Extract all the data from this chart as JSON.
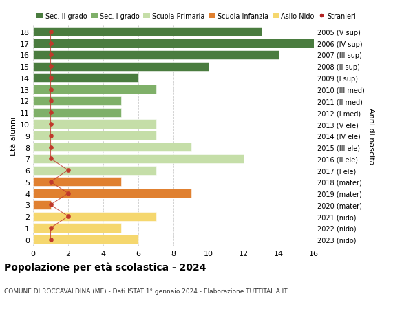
{
  "ages": [
    18,
    17,
    16,
    15,
    14,
    13,
    12,
    11,
    10,
    9,
    8,
    7,
    6,
    5,
    4,
    3,
    2,
    1,
    0
  ],
  "values": [
    13,
    16,
    14,
    10,
    6,
    7,
    5,
    5,
    7,
    7,
    9,
    12,
    7,
    5,
    9,
    1,
    7,
    5,
    6
  ],
  "colors": [
    "#4a7c3f",
    "#4a7c3f",
    "#4a7c3f",
    "#4a7c3f",
    "#4a7c3f",
    "#7fb069",
    "#7fb069",
    "#7fb069",
    "#c5dea8",
    "#c5dea8",
    "#c5dea8",
    "#c5dea8",
    "#c5dea8",
    "#e08030",
    "#e08030",
    "#e08030",
    "#f5d76e",
    "#f5d76e",
    "#f5d76e"
  ],
  "right_labels": [
    "2005 (V sup)",
    "2006 (IV sup)",
    "2007 (III sup)",
    "2008 (II sup)",
    "2009 (I sup)",
    "2010 (III med)",
    "2011 (II med)",
    "2012 (I med)",
    "2013 (V ele)",
    "2014 (IV ele)",
    "2015 (III ele)",
    "2016 (II ele)",
    "2017 (I ele)",
    "2018 (mater)",
    "2019 (mater)",
    "2020 (mater)",
    "2021 (nido)",
    "2022 (nido)",
    "2023 (nido)"
  ],
  "legend_labels": [
    "Sec. II grado",
    "Sec. I grado",
    "Scuola Primaria",
    "Scuola Infanzia",
    "Asilo Nido",
    "Stranieri"
  ],
  "legend_colors": [
    "#4a7c3f",
    "#7fb069",
    "#c5dea8",
    "#e08030",
    "#f5d76e",
    "#b22222"
  ],
  "ylabel_left": "Età alunni",
  "ylabel_right": "Anni di nascita",
  "title": "Popolazione per età scolastica - 2024",
  "subtitle": "COMUNE DI ROCCAVALDINA (ME) - Dati ISTAT 1° gennaio 2024 - Elaborazione TUTTITALIA.IT",
  "xlim": [
    0,
    16
  ],
  "xticks": [
    0,
    2,
    4,
    6,
    8,
    10,
    12,
    14,
    16
  ],
  "stranieri_x": [
    1,
    1,
    1,
    1,
    1,
    1,
    1,
    1,
    1,
    1,
    1,
    1,
    2,
    1,
    2,
    1,
    2,
    1,
    1
  ],
  "background_color": "#ffffff",
  "bar_height": 0.78
}
